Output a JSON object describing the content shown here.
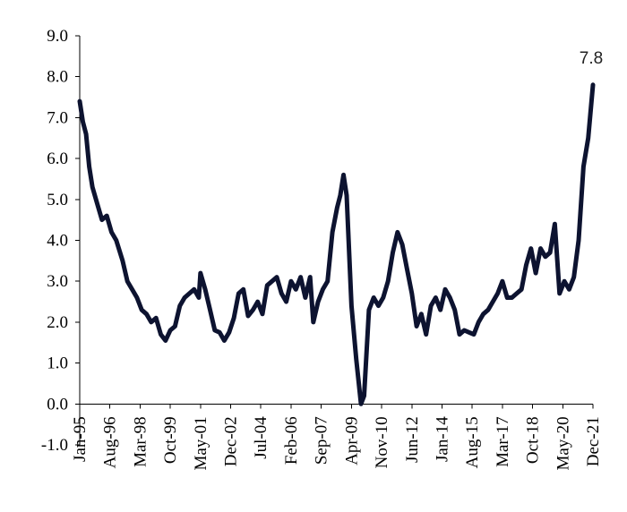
{
  "chart_data": {
    "type": "line",
    "title": "",
    "xlabel": "",
    "ylabel": "",
    "ylim": [
      -1.0,
      9.0
    ],
    "yticks": [
      "-1.0",
      "0.0",
      "1.0",
      "2.0",
      "3.0",
      "4.0",
      "5.0",
      "6.0",
      "7.0",
      "8.0",
      "9.0"
    ],
    "xticks": [
      "Jan-95",
      "Aug-96",
      "Mar-98",
      "Oct-99",
      "May-01",
      "Dec-02",
      "Jul-04",
      "Feb-06",
      "Sep-07",
      "Apr-09",
      "Nov-10",
      "Jun-12",
      "Jan-14",
      "Aug-15",
      "Mar-17",
      "Oct-18",
      "May-20",
      "Dec-21"
    ],
    "grid": false,
    "legend": "none",
    "line_color": "#0d1330",
    "annotation": {
      "text": "7.8",
      "x": "Dec-21",
      "y": 7.8
    },
    "series": [
      {
        "points": [
          [
            "Jan-95",
            7.4
          ],
          [
            "Mar-95",
            6.9
          ],
          [
            "May-95",
            6.6
          ],
          [
            "Jul-95",
            5.8
          ],
          [
            "Sep-95",
            5.3
          ],
          [
            "Dec-95",
            4.9
          ],
          [
            "Mar-96",
            4.5
          ],
          [
            "Jun-96",
            4.6
          ],
          [
            "Sep-96",
            4.2
          ],
          [
            "Dec-96",
            4.0
          ],
          [
            "Apr-97",
            3.5
          ],
          [
            "Jul-97",
            3.0
          ],
          [
            "Oct-97",
            2.8
          ],
          [
            "Jan-98",
            2.6
          ],
          [
            "Apr-98",
            2.3
          ],
          [
            "Jul-98",
            2.2
          ],
          [
            "Oct-98",
            2.0
          ],
          [
            "Jan-99",
            2.1
          ],
          [
            "Apr-99",
            1.7
          ],
          [
            "Jul-99",
            1.55
          ],
          [
            "Oct-99",
            1.8
          ],
          [
            "Jan-00",
            1.9
          ],
          [
            "Apr-00",
            2.4
          ],
          [
            "Jul-00",
            2.6
          ],
          [
            "Oct-00",
            2.7
          ],
          [
            "Jan-01",
            2.8
          ],
          [
            "Apr-01",
            2.6
          ],
          [
            "May-01",
            3.2
          ],
          [
            "Aug-01",
            2.8
          ],
          [
            "Nov-01",
            2.3
          ],
          [
            "Feb-02",
            1.8
          ],
          [
            "May-02",
            1.75
          ],
          [
            "Aug-02",
            1.55
          ],
          [
            "Nov-02",
            1.75
          ],
          [
            "Feb-03",
            2.1
          ],
          [
            "May-03",
            2.7
          ],
          [
            "Aug-03",
            2.8
          ],
          [
            "Nov-03",
            2.15
          ],
          [
            "Feb-04",
            2.3
          ],
          [
            "May-04",
            2.5
          ],
          [
            "Aug-04",
            2.2
          ],
          [
            "Nov-04",
            2.9
          ],
          [
            "Feb-05",
            3.0
          ],
          [
            "May-05",
            3.1
          ],
          [
            "Aug-05",
            2.7
          ],
          [
            "Nov-05",
            2.5
          ],
          [
            "Feb-06",
            3.0
          ],
          [
            "May-06",
            2.8
          ],
          [
            "Aug-06",
            3.1
          ],
          [
            "Nov-06",
            2.6
          ],
          [
            "Feb-07",
            3.1
          ],
          [
            "Apr-07",
            2.0
          ],
          [
            "Jul-07",
            2.5
          ],
          [
            "Oct-07",
            2.8
          ],
          [
            "Jan-08",
            3.0
          ],
          [
            "Apr-08",
            4.2
          ],
          [
            "Jul-08",
            4.8
          ],
          [
            "Sep-08",
            5.1
          ],
          [
            "Nov-08",
            5.6
          ],
          [
            "Jan-09",
            5.1
          ],
          [
            "Apr-09",
            2.4
          ],
          [
            "Jul-09",
            1.1
          ],
          [
            "Oct-09",
            0.0
          ],
          [
            "Dec-09",
            0.2
          ],
          [
            "Mar-10",
            2.3
          ],
          [
            "Jun-10",
            2.6
          ],
          [
            "Sep-10",
            2.4
          ],
          [
            "Dec-10",
            2.6
          ],
          [
            "Mar-11",
            3.0
          ],
          [
            "Jun-11",
            3.7
          ],
          [
            "Sep-11",
            4.2
          ],
          [
            "Dec-11",
            3.9
          ],
          [
            "Mar-12",
            3.3
          ],
          [
            "Jun-12",
            2.7
          ],
          [
            "Sep-12",
            1.9
          ],
          [
            "Dec-12",
            2.2
          ],
          [
            "Mar-13",
            1.7
          ],
          [
            "Jun-13",
            2.4
          ],
          [
            "Sep-13",
            2.6
          ],
          [
            "Dec-13",
            2.3
          ],
          [
            "Mar-14",
            2.8
          ],
          [
            "Jun-14",
            2.6
          ],
          [
            "Sep-14",
            2.3
          ],
          [
            "Dec-14",
            1.7
          ],
          [
            "Mar-15",
            1.8
          ],
          [
            "Jun-15",
            1.75
          ],
          [
            "Sep-15",
            1.7
          ],
          [
            "Dec-15",
            2.0
          ],
          [
            "Mar-16",
            2.2
          ],
          [
            "Jun-16",
            2.3
          ],
          [
            "Sep-16",
            2.5
          ],
          [
            "Dec-16",
            2.7
          ],
          [
            "Mar-17",
            3.0
          ],
          [
            "Jun-17",
            2.6
          ],
          [
            "Sep-17",
            2.6
          ],
          [
            "Dec-17",
            2.7
          ],
          [
            "Mar-18",
            2.8
          ],
          [
            "Jun-18",
            3.4
          ],
          [
            "Sep-18",
            3.8
          ],
          [
            "Dec-18",
            3.2
          ],
          [
            "Mar-19",
            3.8
          ],
          [
            "Jun-19",
            3.6
          ],
          [
            "Sep-19",
            3.7
          ],
          [
            "Dec-19",
            4.4
          ],
          [
            "Mar-20",
            2.7
          ],
          [
            "Jun-20",
            3.0
          ],
          [
            "Sep-20",
            2.8
          ],
          [
            "Dec-20",
            3.1
          ],
          [
            "Mar-21",
            4.0
          ],
          [
            "Jun-21",
            5.8
          ],
          [
            "Sep-21",
            6.5
          ],
          [
            "Dec-21",
            7.8
          ]
        ]
      }
    ]
  }
}
